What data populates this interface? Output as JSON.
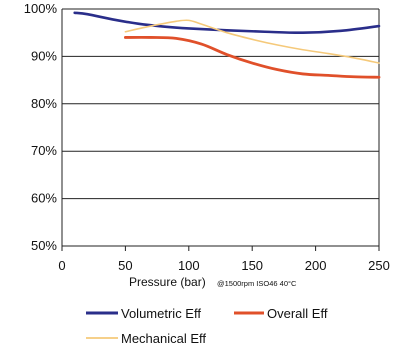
{
  "chart_data": {
    "type": "line",
    "xlabel": "Pressure (bar)",
    "xlabel_note": "@1500rpm ISO46 40°C",
    "ylabel": "",
    "xlim": [
      0,
      250
    ],
    "ylim": [
      50,
      100
    ],
    "x_ticks": [
      0,
      50,
      100,
      150,
      200,
      250
    ],
    "y_ticks": [
      50,
      60,
      70,
      80,
      90,
      100
    ],
    "x_tick_labels": [
      "0",
      "50",
      "100",
      "150",
      "200",
      "250"
    ],
    "y_tick_labels": [
      "50%",
      "60%",
      "70%",
      "80%",
      "90%",
      "100%"
    ],
    "grid": "horizontal",
    "legend_position": "bottom",
    "series": [
      {
        "name": "Volumetric Eff",
        "color": "#2a2e8a",
        "x": [
          10,
          20,
          40,
          60,
          80,
          100,
          130,
          160,
          190,
          220,
          250
        ],
        "y": [
          99.2,
          98.9,
          97.8,
          96.9,
          96.3,
          95.9,
          95.5,
          95.2,
          95.0,
          95.4,
          96.4
        ]
      },
      {
        "name": "Overall Eff",
        "color": "#e0502a",
        "x": [
          50,
          70,
          90,
          110,
          130,
          150,
          170,
          190,
          210,
          230,
          250
        ],
        "y": [
          94.0,
          94.0,
          93.8,
          92.6,
          90.4,
          88.6,
          87.2,
          86.3,
          86.0,
          85.7,
          85.6
        ]
      },
      {
        "name": "Mechanical Eff",
        "color": "#f5c97a",
        "x": [
          50,
          70,
          90,
          100,
          110,
          130,
          150,
          170,
          190,
          210,
          230,
          250
        ],
        "y": [
          95.2,
          96.4,
          97.4,
          97.6,
          96.8,
          95.0,
          93.6,
          92.4,
          91.4,
          90.6,
          89.7,
          88.6
        ]
      }
    ]
  }
}
